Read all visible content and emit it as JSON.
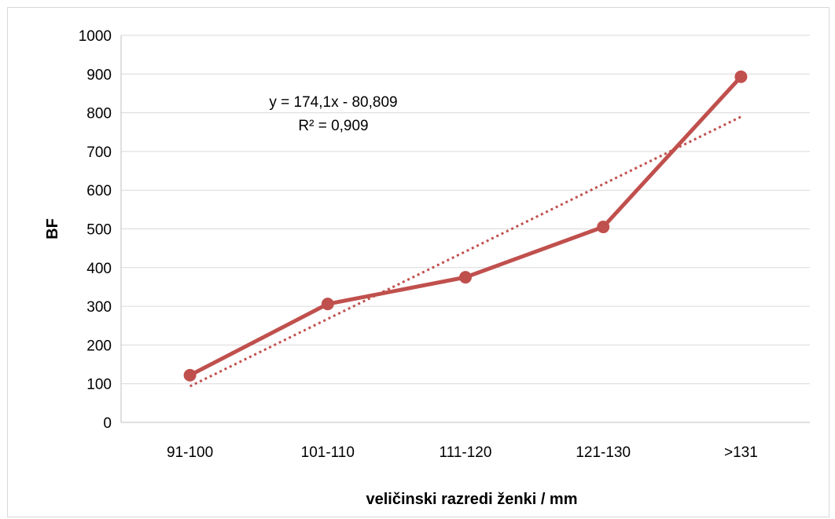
{
  "chart_data": {
    "type": "line",
    "title": "",
    "xlabel": "veličinski razredi ženki / mm",
    "ylabel": "BF",
    "categories": [
      "91-100",
      "101-110",
      "111-120",
      "121-130",
      ">131"
    ],
    "series": [
      {
        "values": [
          122,
          306,
          375,
          505,
          893
        ],
        "color": "#c0504d",
        "markers": true
      }
    ],
    "trendline": {
      "kind": "linear",
      "slope": 174.1,
      "intercept": -80.809,
      "style": "dotted",
      "color": "#c0504d",
      "equation_label": "y = 174,1x - 80,809",
      "r2_label": "R² = 0,909"
    },
    "ylim": [
      0,
      1000
    ],
    "yticks": [
      0,
      100,
      200,
      300,
      400,
      500,
      600,
      700,
      800,
      900,
      1000
    ],
    "grid": true,
    "legend": "none"
  }
}
